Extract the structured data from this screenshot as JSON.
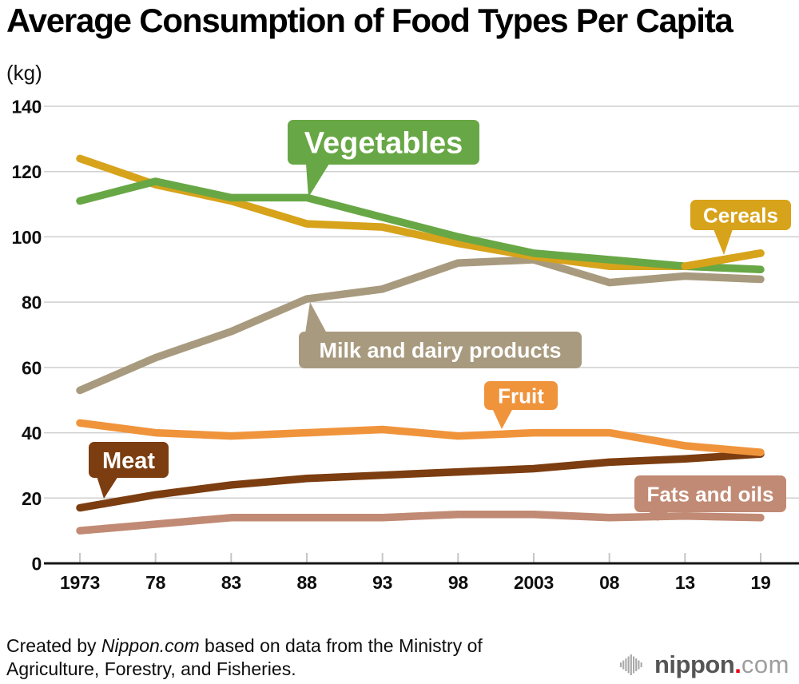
{
  "title": "Average Consumption of Food Types Per Capita",
  "unit_label": "(kg)",
  "chart_data": {
    "type": "line",
    "title": "Average Consumption of Food Types Per Capita",
    "ylabel": "(kg)",
    "xlabel": "",
    "x_tick_labels": [
      "1973",
      "78",
      "83",
      "88",
      "93",
      "98",
      "2003",
      "08",
      "13",
      "19"
    ],
    "x_values_years": [
      1973,
      1978,
      1983,
      1988,
      1993,
      1998,
      2003,
      2008,
      2013,
      2019
    ],
    "y_ticks": [
      0,
      20,
      40,
      60,
      80,
      100,
      120,
      140
    ],
    "ylim": [
      0,
      140
    ],
    "grid": true,
    "legend_style": "inline callout labels attached to lines",
    "series": [
      {
        "id": "vegetables",
        "name": "Vegetables",
        "color": "#68a745",
        "values": [
          111,
          117,
          112,
          112,
          106,
          100,
          95,
          93,
          91,
          90
        ]
      },
      {
        "id": "cereals",
        "name": "Cereals",
        "color": "#d7a31b",
        "values": [
          124,
          116,
          111,
          104,
          103,
          98,
          94,
          91,
          91,
          95
        ]
      },
      {
        "id": "milk",
        "name": "Milk and dairy products",
        "color": "#a89a7e",
        "values": [
          53,
          63,
          71,
          81,
          84,
          92,
          93,
          86,
          88,
          87
        ]
      },
      {
        "id": "fruit",
        "name": "Fruit",
        "color": "#f0943c",
        "values": [
          43,
          40,
          39,
          40,
          41,
          39,
          40,
          40,
          36,
          34
        ]
      },
      {
        "id": "meat",
        "name": "Meat",
        "color": "#7c3d10",
        "values": [
          17,
          21,
          24,
          26,
          27,
          28,
          29,
          31,
          32,
          33.5
        ]
      },
      {
        "id": "fats",
        "name": "Fats and oils",
        "color": "#c18a74",
        "values": [
          10,
          12,
          14,
          14,
          14,
          15,
          15,
          14,
          14.5,
          14
        ]
      }
    ]
  },
  "footer": {
    "prefix": "Created by ",
    "brand": "Nippon.com",
    "suffix": " based on data from the Ministry of Agriculture, Forestry, and Fisheries."
  },
  "logo": {
    "name": "nippon",
    "dot": ".",
    "tld": "com"
  }
}
